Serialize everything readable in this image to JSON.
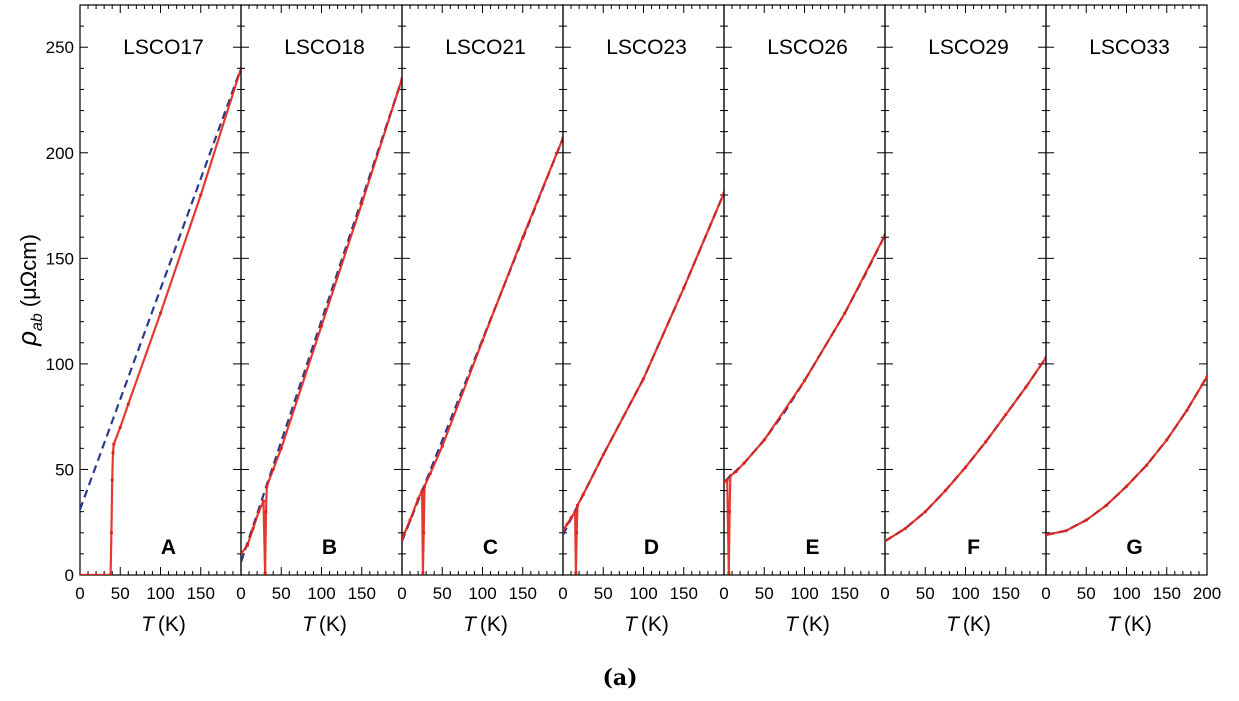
{
  "figure": {
    "caption": "(a)"
  },
  "colors": {
    "data": "#e0241b",
    "fit": "#2b3a8f",
    "axis": "#000000"
  },
  "chart_data": {
    "type": "line",
    "ylabel": "ρ_ab (μΩcm)",
    "ylabel_main": "ρ",
    "ylabel_sub": "ab",
    "ylabel_units": "(μΩcm)",
    "ylim": [
      0,
      270
    ],
    "yticks": [
      0,
      50,
      100,
      150,
      200,
      250
    ],
    "xlim": [
      0,
      200
    ],
    "xlabel_var": "T",
    "xlabel_units": "(K)",
    "series_legend": [
      "measured ρ_ab (red solid)",
      "fit (blue dashed)"
    ],
    "panels": [
      {
        "sample": "LSCO17",
        "letter": "A",
        "xticks": [
          "0",
          "50",
          "100",
          "150"
        ],
        "fit": [
          [
            0,
            31
          ],
          [
            200,
            240
          ]
        ],
        "data": [
          [
            0,
            0
          ],
          [
            10,
            0
          ],
          [
            20,
            0
          ],
          [
            30,
            0
          ],
          [
            38,
            0
          ],
          [
            39,
            20
          ],
          [
            40,
            45
          ],
          [
            41,
            58
          ],
          [
            42,
            62
          ],
          [
            50,
            70
          ],
          [
            60,
            81
          ],
          [
            100,
            124
          ],
          [
            150,
            180
          ],
          [
            200,
            240
          ]
        ]
      },
      {
        "sample": "LSCO18",
        "letter": "B",
        "xticks": [
          "0",
          "50",
          "100",
          "150"
        ],
        "fit": [
          [
            0,
            6
          ],
          [
            200,
            235
          ]
        ],
        "data": [
          [
            0,
            10
          ],
          [
            8,
            14
          ],
          [
            15,
            22
          ],
          [
            22,
            30
          ],
          [
            28,
            35
          ],
          [
            30,
            1
          ],
          [
            31,
            30
          ],
          [
            32,
            42
          ],
          [
            40,
            50
          ],
          [
            50,
            60
          ],
          [
            100,
            118
          ],
          [
            150,
            176
          ],
          [
            200,
            235
          ]
        ]
      },
      {
        "sample": "LSCO21",
        "letter": "C",
        "xticks": [
          "0",
          "50",
          "100",
          "150"
        ],
        "fit": [
          [
            0,
            16
          ],
          [
            200,
            207
          ]
        ],
        "data": [
          [
            0,
            17
          ],
          [
            10,
            26
          ],
          [
            20,
            36
          ],
          [
            25,
            40
          ],
          [
            26,
            1
          ],
          [
            27,
            20
          ],
          [
            28,
            42
          ],
          [
            35,
            48
          ],
          [
            50,
            61
          ],
          [
            100,
            111
          ],
          [
            150,
            160
          ],
          [
            200,
            207
          ]
        ]
      },
      {
        "sample": "LSCO23",
        "letter": "D",
        "xticks": [
          "0",
          "50",
          "100",
          "150"
        ],
        "fit": [
          [
            0,
            19
          ],
          [
            25,
            38
          ],
          [
            50,
            57
          ],
          [
            100,
            93
          ],
          [
            150,
            136
          ],
          [
            200,
            181
          ]
        ],
        "data": [
          [
            0,
            21
          ],
          [
            5,
            24
          ],
          [
            10,
            27
          ],
          [
            15,
            30
          ],
          [
            16,
            1
          ],
          [
            17,
            20
          ],
          [
            18,
            33
          ],
          [
            25,
            38
          ],
          [
            50,
            57
          ],
          [
            100,
            93
          ],
          [
            150,
            136
          ],
          [
            200,
            181
          ]
        ]
      },
      {
        "sample": "LSCO26",
        "letter": "E",
        "xticks": [
          "0",
          "50",
          "100",
          "150"
        ],
        "fit": [
          [
            0,
            44
          ],
          [
            25,
            53
          ],
          [
            50,
            64
          ],
          [
            75,
            77
          ],
          [
            100,
            92
          ],
          [
            125,
            108
          ],
          [
            150,
            124
          ],
          [
            175,
            142
          ],
          [
            200,
            161
          ]
        ],
        "data": [
          [
            0,
            44
          ],
          [
            4,
            45
          ],
          [
            6,
            1
          ],
          [
            7,
            30
          ],
          [
            8,
            47
          ],
          [
            15,
            49
          ],
          [
            25,
            53
          ],
          [
            50,
            64
          ],
          [
            100,
            92
          ],
          [
            150,
            124
          ],
          [
            200,
            161
          ]
        ]
      },
      {
        "sample": "LSCO29",
        "letter": "F",
        "xticks": [
          "0",
          "50",
          "100",
          "150"
        ],
        "fit": [
          [
            0,
            16
          ],
          [
            25,
            22
          ],
          [
            50,
            30
          ],
          [
            75,
            40
          ],
          [
            100,
            51
          ],
          [
            125,
            63
          ],
          [
            150,
            76
          ],
          [
            175,
            89
          ],
          [
            200,
            103
          ]
        ],
        "data": [
          [
            0,
            16
          ],
          [
            25,
            22
          ],
          [
            50,
            30
          ],
          [
            75,
            40
          ],
          [
            100,
            51
          ],
          [
            125,
            63
          ],
          [
            150,
            76
          ],
          [
            175,
            89
          ],
          [
            200,
            103
          ]
        ]
      },
      {
        "sample": "LSCO33",
        "letter": "G",
        "xticks": [
          "0",
          "50",
          "100",
          "150",
          "200"
        ],
        "fit": [
          [
            0,
            19
          ],
          [
            25,
            21
          ],
          [
            50,
            26
          ],
          [
            75,
            33
          ],
          [
            100,
            42
          ],
          [
            125,
            52
          ],
          [
            150,
            64
          ],
          [
            175,
            78
          ],
          [
            200,
            94
          ]
        ],
        "data": [
          [
            0,
            19
          ],
          [
            25,
            21
          ],
          [
            50,
            26
          ],
          [
            75,
            33
          ],
          [
            100,
            42
          ],
          [
            125,
            52
          ],
          [
            150,
            64
          ],
          [
            175,
            78
          ],
          [
            200,
            94
          ]
        ]
      }
    ]
  }
}
